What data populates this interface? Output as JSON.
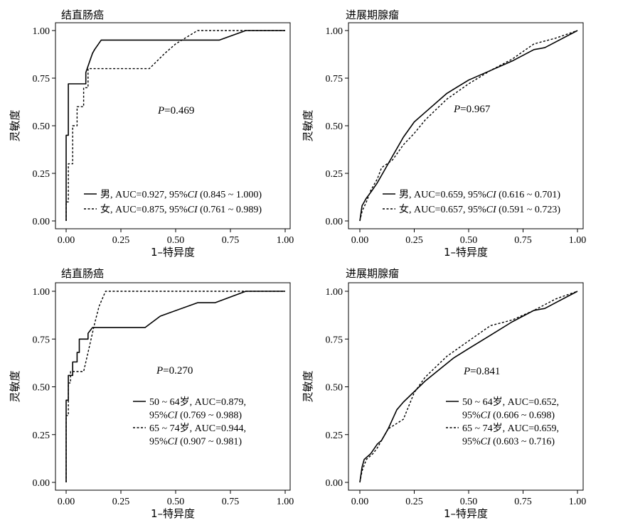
{
  "chart_data": [
    {
      "type": "line",
      "title": "结直肠癌",
      "xlabel": "1–特异度",
      "ylabel": "灵敏度",
      "xlim": [
        0,
        1
      ],
      "ylim": [
        0,
        1
      ],
      "xticks": [
        "0.00",
        "0.25",
        "0.50",
        "0.75",
        "1.00"
      ],
      "yticks": [
        "0.00",
        "0.25",
        "0.50",
        "0.75",
        "1.00"
      ],
      "annotation": "=0.469",
      "annotation_prefix": "P",
      "legend": "bottom-right",
      "series": [
        {
          "name": "男",
          "style": "solid",
          "legend_lines": [
            "男, AUC=0.927, 95%CI (0.845 ~ 1.000)"
          ],
          "x": [
            0,
            0,
            0.01,
            0.01,
            0.02,
            0.02,
            0.09,
            0.09,
            0.12,
            0.13,
            0.16,
            0.7,
            0.82,
            1.0
          ],
          "y": [
            0,
            0.45,
            0.45,
            0.72,
            0.72,
            0.72,
            0.72,
            0.78,
            0.88,
            0.9,
            0.95,
            0.95,
            1.0,
            1.0
          ]
        },
        {
          "name": "女",
          "style": "dashed",
          "legend_lines": [
            "女, AUC=0.875, 95%CI (0.761 ~ 0.989)"
          ],
          "x": [
            0,
            0,
            0.01,
            0.01,
            0.03,
            0.03,
            0.05,
            0.05,
            0.08,
            0.08,
            0.1,
            0.1,
            0.12,
            0.38,
            0.45,
            0.5,
            0.6,
            0.8,
            1.0
          ],
          "y": [
            0,
            0.1,
            0.1,
            0.3,
            0.3,
            0.5,
            0.5,
            0.6,
            0.6,
            0.7,
            0.7,
            0.8,
            0.8,
            0.8,
            0.88,
            0.93,
            1.0,
            1.0,
            1.0
          ]
        }
      ]
    },
    {
      "type": "line",
      "title": "进展期腺瘤",
      "xlabel": "1–特异度",
      "ylabel": "灵敏度",
      "xlim": [
        0,
        1
      ],
      "ylim": [
        0,
        1
      ],
      "xticks": [
        "0.00",
        "0.25",
        "0.50",
        "0.75",
        "1.00"
      ],
      "yticks": [
        "0.00",
        "0.25",
        "0.50",
        "0.75",
        "1.00"
      ],
      "annotation": "=0.967",
      "annotation_prefix": "P",
      "legend": "bottom-right",
      "series": [
        {
          "name": "男",
          "style": "solid",
          "legend_lines": [
            "男, AUC=0.659, 95%CI (0.616 ~ 0.701)"
          ],
          "x": [
            0,
            0.01,
            0.03,
            0.05,
            0.08,
            0.12,
            0.15,
            0.2,
            0.25,
            0.3,
            0.4,
            0.5,
            0.6,
            0.7,
            0.8,
            0.85,
            0.9,
            1.0
          ],
          "y": [
            0,
            0.08,
            0.12,
            0.15,
            0.2,
            0.28,
            0.34,
            0.44,
            0.52,
            0.57,
            0.67,
            0.74,
            0.79,
            0.84,
            0.9,
            0.91,
            0.94,
            1.0
          ]
        },
        {
          "name": "女",
          "style": "dashed",
          "legend_lines": [
            "女, AUC=0.657, 95%CI (0.591 ~ 0.723)"
          ],
          "x": [
            0,
            0.01,
            0.03,
            0.05,
            0.08,
            0.1,
            0.15,
            0.2,
            0.25,
            0.3,
            0.4,
            0.5,
            0.6,
            0.7,
            0.8,
            0.9,
            1.0
          ],
          "y": [
            0,
            0.05,
            0.1,
            0.16,
            0.22,
            0.28,
            0.32,
            0.4,
            0.46,
            0.53,
            0.64,
            0.72,
            0.79,
            0.85,
            0.93,
            0.96,
            1.0
          ]
        }
      ]
    },
    {
      "type": "line",
      "title": "结直肠癌",
      "xlabel": "1–特异度",
      "ylabel": "灵敏度",
      "xlim": [
        0,
        1
      ],
      "ylim": [
        0,
        1
      ],
      "xticks": [
        "0.00",
        "0.25",
        "0.50",
        "0.75",
        "1.00"
      ],
      "yticks": [
        "0.00",
        "0.25",
        "0.50",
        "0.75",
        "1.00"
      ],
      "annotation": "=0.270",
      "annotation_prefix": "P",
      "legend": "bottom-right",
      "series": [
        {
          "name": "50 ~ 64岁",
          "style": "solid",
          "legend_lines": [
            "50 ~ 64岁, AUC=0.879,",
            "95%CI (0.769 ~ 0.988)"
          ],
          "x": [
            0,
            0,
            0.01,
            0.01,
            0.03,
            0.03,
            0.05,
            0.05,
            0.06,
            0.06,
            0.1,
            0.1,
            0.12,
            0.36,
            0.43,
            0.6,
            0.68,
            0.82,
            1.0
          ],
          "y": [
            0,
            0.43,
            0.43,
            0.56,
            0.56,
            0.63,
            0.63,
            0.68,
            0.68,
            0.75,
            0.75,
            0.78,
            0.81,
            0.81,
            0.87,
            0.94,
            0.94,
            1.0,
            1.0
          ]
        },
        {
          "name": "65 ~ 74岁",
          "style": "dashed",
          "legend_lines": [
            "65 ~ 74岁, AUC=0.944,",
            "95%CI (0.907 ~ 0.981)"
          ],
          "x": [
            0,
            0,
            0.01,
            0.01,
            0.02,
            0.02,
            0.08,
            0.08,
            0.1,
            0.13,
            0.15,
            0.18,
            0.8,
            1.0
          ],
          "y": [
            0,
            0.35,
            0.35,
            0.52,
            0.52,
            0.58,
            0.58,
            0.58,
            0.68,
            0.83,
            0.92,
            1.0,
            1.0,
            1.0
          ]
        }
      ]
    },
    {
      "type": "line",
      "title": "进展期腺瘤",
      "xlabel": "1–特异度",
      "ylabel": "灵敏度",
      "xlim": [
        0,
        1
      ],
      "ylim": [
        0,
        1
      ],
      "xticks": [
        "0.00",
        "0.25",
        "0.50",
        "0.75",
        "1.00"
      ],
      "yticks": [
        "0.00",
        "0.25",
        "0.50",
        "0.75",
        "1.00"
      ],
      "annotation": "=0.841",
      "annotation_prefix": "P",
      "legend": "bottom-right",
      "series": [
        {
          "name": "50 ~ 64岁",
          "style": "solid",
          "legend_lines": [
            "50 ~ 64岁, AUC=0.652,",
            "95%CI (0.606 ~ 0.698)"
          ],
          "x": [
            0,
            0.01,
            0.02,
            0.05,
            0.08,
            0.1,
            0.13,
            0.17,
            0.2,
            0.3,
            0.43,
            0.5,
            0.6,
            0.7,
            0.8,
            0.85,
            0.9,
            1.0
          ],
          "y": [
            0,
            0.08,
            0.12,
            0.15,
            0.2,
            0.22,
            0.28,
            0.38,
            0.42,
            0.53,
            0.65,
            0.7,
            0.77,
            0.84,
            0.9,
            0.91,
            0.94,
            1.0
          ]
        },
        {
          "name": "65 ~ 74岁",
          "style": "dashed",
          "legend_lines": [
            "65 ~ 74岁, AUC=0.659,",
            "95%CI (0.603 ~ 0.716)"
          ],
          "x": [
            0,
            0.01,
            0.03,
            0.06,
            0.08,
            0.1,
            0.13,
            0.2,
            0.25,
            0.3,
            0.4,
            0.5,
            0.6,
            0.7,
            0.8,
            0.9,
            1.0
          ],
          "y": [
            0,
            0.06,
            0.12,
            0.15,
            0.18,
            0.22,
            0.28,
            0.33,
            0.47,
            0.55,
            0.66,
            0.74,
            0.82,
            0.85,
            0.9,
            0.96,
            1.0
          ]
        }
      ]
    }
  ]
}
